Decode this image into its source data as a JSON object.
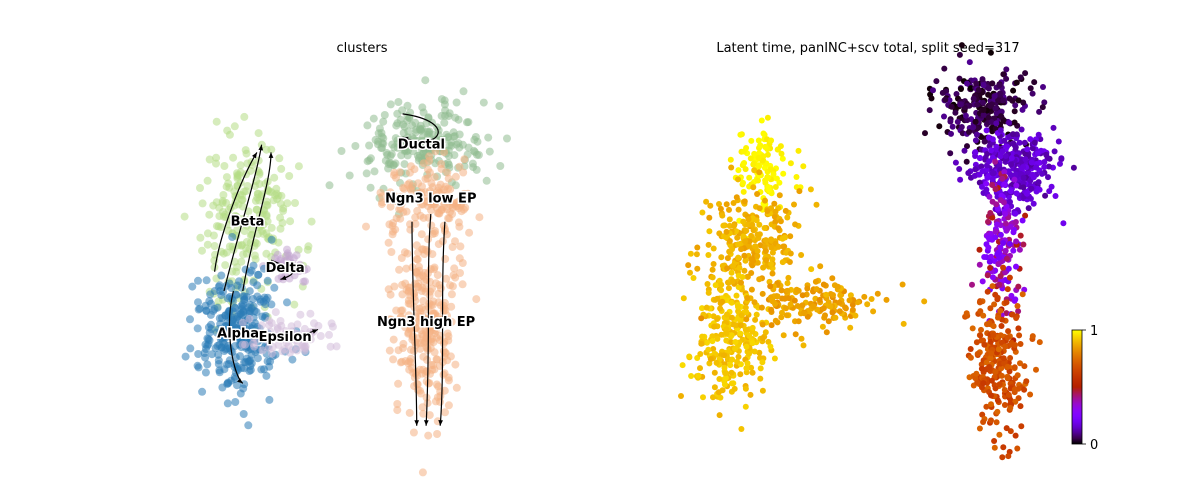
{
  "chart_data": [
    {
      "type": "scatter",
      "title": "clusters",
      "legend": "on data",
      "axes": "off",
      "clusters": [
        {
          "name": "Ductal",
          "color": "#8fbc8f",
          "center": [
            0.62,
            0.78
          ],
          "spread": [
            0.07,
            0.06
          ],
          "count": 230
        },
        {
          "name": "Ngn3 low EP",
          "color": "#f4b183",
          "center": [
            0.64,
            0.64
          ],
          "spread": [
            0.05,
            0.05
          ],
          "count": 150
        },
        {
          "name": "Ngn3 high EP",
          "color": "#f4b183",
          "center": [
            0.63,
            0.32
          ],
          "spread": [
            0.035,
            0.12
          ],
          "count": 280
        },
        {
          "name": "Beta",
          "color": "#b5dc85",
          "center": [
            0.25,
            0.58
          ],
          "spread": [
            0.05,
            0.11
          ],
          "count": 230
        },
        {
          "name": "Delta",
          "color": "#c2a5cf",
          "center": [
            0.33,
            0.46
          ],
          "spread": [
            0.025,
            0.02
          ],
          "count": 45
        },
        {
          "name": "Alpha",
          "color": "#2c7bb6",
          "center": [
            0.23,
            0.29
          ],
          "spread": [
            0.045,
            0.08
          ],
          "count": 280
        },
        {
          "name": "Epsilon",
          "color": "#d4bedb",
          "center": [
            0.33,
            0.28
          ],
          "spread": [
            0.05,
            0.025
          ],
          "count": 80
        }
      ]
    },
    {
      "type": "scatter",
      "title": "Latent time, panINC+scv total, split seed=317",
      "axes": "off",
      "colorbar": {
        "min": 0,
        "max": 1,
        "ticks": [
          "0",
          "1"
        ],
        "colormap": "gnuplot"
      },
      "groups": [
        {
          "center": [
            0.72,
            0.88
          ],
          "spread": [
            0.05,
            0.05
          ],
          "latent_time": [
            0.0,
            0.1
          ],
          "count": 260
        },
        {
          "center": [
            0.78,
            0.72
          ],
          "spread": [
            0.045,
            0.05
          ],
          "latent_time": [
            0.1,
            0.2
          ],
          "count": 320
        },
        {
          "center": [
            0.76,
            0.52
          ],
          "spread": [
            0.02,
            0.09
          ],
          "latent_time": [
            0.2,
            0.5
          ],
          "count": 160
        },
        {
          "center": [
            0.75,
            0.22
          ],
          "spread": [
            0.03,
            0.09
          ],
          "latent_time": [
            0.6,
            0.75
          ],
          "count": 260
        },
        {
          "center": [
            0.25,
            0.72
          ],
          "spread": [
            0.03,
            0.05
          ],
          "latent_time": [
            0.97,
            1.0
          ],
          "count": 120
        },
        {
          "center": [
            0.22,
            0.52
          ],
          "spread": [
            0.05,
            0.07
          ],
          "latent_time": [
            0.85,
            0.92
          ],
          "count": 260
        },
        {
          "center": [
            0.18,
            0.28
          ],
          "spread": [
            0.04,
            0.08
          ],
          "latent_time": [
            0.88,
            0.95
          ],
          "count": 260
        },
        {
          "center": [
            0.35,
            0.37
          ],
          "spread": [
            0.07,
            0.03
          ],
          "latent_time": [
            0.82,
            0.9
          ],
          "count": 160
        }
      ]
    }
  ]
}
